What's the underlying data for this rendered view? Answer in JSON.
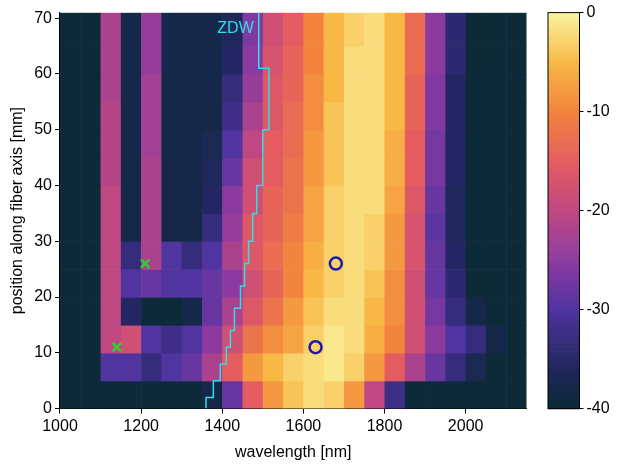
{
  "chart_data": {
    "type": "heatmap",
    "x_label": "wavelength [nm]",
    "y_label": "position along fiber axis [mm]",
    "xlim": [
      1000,
      2150
    ],
    "ylim": [
      0,
      71
    ],
    "xticks": [
      1000,
      1200,
      1400,
      1600,
      1800,
      2000
    ],
    "yticks": [
      0,
      10,
      20,
      30,
      40,
      50,
      60,
      70
    ],
    "grid": false,
    "heatmap": {
      "x_bins": [
        1000,
        1050,
        1100,
        1150,
        1200,
        1250,
        1300,
        1350,
        1400,
        1450,
        1500,
        1550,
        1600,
        1650,
        1700,
        1750,
        1800,
        1850,
        1900,
        1950,
        2000,
        2050,
        2100,
        2150
      ],
      "y_bins": [
        0,
        5,
        10,
        15,
        20,
        25,
        30,
        35,
        40,
        45,
        50,
        55,
        60,
        65,
        71
      ],
      "values": [
        [
          -40,
          -40,
          -40,
          -40,
          -40,
          -40,
          -40,
          -38,
          -28,
          -15,
          -8,
          -4,
          -2,
          -3,
          -8,
          -20,
          -32,
          -40,
          -40,
          -40,
          -40,
          -40,
          -40
        ],
        [
          -40,
          -40,
          -30,
          -30,
          -33,
          -30,
          -28,
          -22,
          -15,
          -8,
          -5,
          -3,
          -2,
          -1,
          -3,
          -8,
          -15,
          -22,
          -28,
          -33,
          -37,
          -40,
          -40
        ],
        [
          -40,
          -40,
          -20,
          -18,
          -30,
          -32,
          -30,
          -25,
          -18,
          -12,
          -9,
          -7,
          -3,
          -1,
          -2,
          -6,
          -10,
          -18,
          -25,
          -30,
          -33,
          -38,
          -40
        ],
        [
          -40,
          -40,
          -20,
          -35,
          -40,
          -40,
          -38,
          -28,
          -22,
          -16,
          -12,
          -8,
          -4,
          -2,
          -2,
          -5,
          -9,
          -18,
          -27,
          -33,
          -38,
          -40,
          -40
        ],
        [
          -40,
          -40,
          -20,
          -30,
          -28,
          -30,
          -30,
          -28,
          -25,
          -18,
          -14,
          -10,
          -5,
          -3,
          -2,
          -4,
          -9,
          -18,
          -28,
          -34,
          -40,
          -40,
          -40
        ],
        [
          -40,
          -40,
          -20,
          -33,
          -22,
          -30,
          -33,
          -30,
          -22,
          -16,
          -13,
          -10,
          -6,
          -3,
          -2,
          -3,
          -8,
          -17,
          -28,
          -35,
          -40,
          -40,
          -40
        ],
        [
          -40,
          -40,
          -20,
          -38,
          -22,
          -38,
          -38,
          -33,
          -24,
          -16,
          -14,
          -11,
          -7,
          -3,
          -2,
          -3,
          -8,
          -17,
          -29,
          -36,
          -40,
          -40,
          -40
        ],
        [
          -40,
          -40,
          -20,
          -38,
          -22,
          -38,
          -38,
          -35,
          -25,
          -18,
          -14,
          -12,
          -7,
          -3,
          -2,
          -2,
          -7,
          -16,
          -28,
          -36,
          -40,
          -40,
          -40
        ],
        [
          -40,
          -40,
          -21,
          -38,
          -22,
          -38,
          -38,
          -36,
          -28,
          -18,
          -15,
          -12,
          -8,
          -4,
          -2,
          -2,
          -6,
          -15,
          -27,
          -35,
          -40,
          -40,
          -40
        ],
        [
          -40,
          -40,
          -21,
          -38,
          -23,
          -38,
          -38,
          -37,
          -30,
          -20,
          -15,
          -13,
          -8,
          -4,
          -2,
          -2,
          -6,
          -15,
          -27,
          -35,
          -40,
          -40,
          -40
        ],
        [
          -40,
          -40,
          -21,
          -38,
          -23,
          -38,
          -38,
          -38,
          -32,
          -22,
          -16,
          -13,
          -9,
          -4,
          -2,
          -2,
          -5,
          -14,
          -26,
          -35,
          -40,
          -40,
          -40
        ],
        [
          -40,
          -40,
          -22,
          -38,
          -23,
          -38,
          -38,
          -38,
          -33,
          -24,
          -16,
          -14,
          -9,
          -5,
          -2,
          -2,
          -5,
          -14,
          -26,
          -35,
          -40,
          -40,
          -40
        ],
        [
          -40,
          -40,
          -22,
          -38,
          -24,
          -38,
          -38,
          -38,
          -35,
          -25,
          -17,
          -14,
          -10,
          -5,
          -2,
          -2,
          -5,
          -13,
          -25,
          -34,
          -40,
          -40,
          -40
        ],
        [
          -40,
          -40,
          -22,
          -38,
          -24,
          -38,
          -38,
          -38,
          -36,
          -26,
          -18,
          -15,
          -10,
          -5,
          -3,
          -2,
          -5,
          -13,
          -25,
          -34,
          -40,
          -40,
          -40
        ]
      ]
    },
    "colorbar": {
      "range": [
        -40,
        0
      ],
      "ticks": [
        0,
        -10,
        -20,
        -30,
        -40
      ]
    },
    "series": [
      {
        "name": "ZDW",
        "type": "line",
        "color": "#33dde6",
        "x": [
          1360,
          1360,
          1378,
          1378,
          1395,
          1395,
          1410,
          1410,
          1420,
          1420,
          1430,
          1430,
          1445,
          1445,
          1455,
          1455,
          1465,
          1465,
          1475,
          1475,
          1485,
          1485,
          1500,
          1500,
          1515,
          1515,
          1490,
          1490
        ],
        "y": [
          0,
          2,
          2,
          5,
          5,
          8,
          8,
          11,
          11,
          14,
          14,
          18,
          18,
          22,
          22,
          26,
          26,
          30,
          30,
          35,
          35,
          40,
          40,
          50,
          50,
          61,
          61,
          71
        ]
      },
      {
        "type": "scatter",
        "marker": "x",
        "color": "#33cc33",
        "x": [
          1140,
          1210
        ],
        "y": [
          11,
          26
        ]
      },
      {
        "type": "scatter",
        "marker": "circle",
        "color": "#1a1aa8",
        "x": [
          1630,
          1680
        ],
        "y": [
          11,
          26
        ]
      }
    ]
  }
}
